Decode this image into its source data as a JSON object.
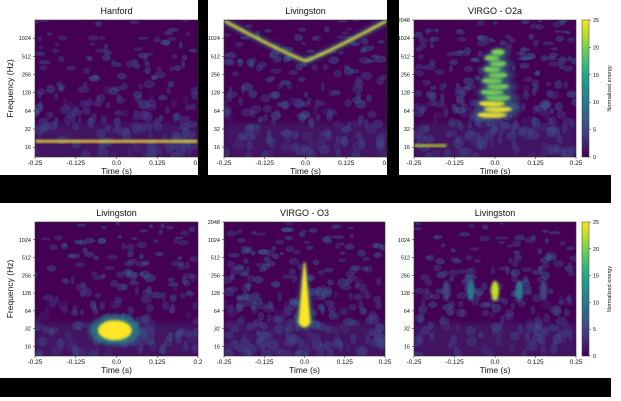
{
  "colorbar": {
    "label": "Normalized energy",
    "ticks": [
      "0",
      "5",
      "10",
      "15",
      "20",
      "25"
    ],
    "range": [
      0,
      25
    ]
  },
  "colormap": [
    "#440154",
    "#482475",
    "#414487",
    "#355f8d",
    "#2a788e",
    "#21918c",
    "#22a884",
    "#44bf70",
    "#7ad151",
    "#bddf26",
    "#fde725"
  ],
  "chart_data": [
    {
      "type": "heatmap",
      "title": "Hanford",
      "xlabel": "Time (s)",
      "ylabel": "Frequency (Hz)",
      "xlim": [
        -0.25,
        0.25
      ],
      "x_ticks": [
        "-0.25",
        "-0.125",
        "0.0",
        "0.125",
        "0.2"
      ],
      "y_scale": "log2",
      "ylim": [
        11,
        2048
      ],
      "y_ticks": [
        "16",
        "32",
        "64",
        "128",
        "256",
        "512",
        "1024"
      ],
      "features": [
        {
          "kind": "horizontal_line",
          "freq_hz": 20,
          "t_start": -0.25,
          "t_end": 0.25,
          "energy": 25
        }
      ]
    },
    {
      "type": "heatmap",
      "title": "Livingston",
      "xlabel": "Time (s)",
      "ylabel": "",
      "xlim": [
        -0.25,
        0.25
      ],
      "x_ticks": [
        "-0.25",
        "-0.125",
        "0.0",
        "0.125",
        "0.2"
      ],
      "y_scale": "log2",
      "ylim": [
        11,
        2048
      ],
      "y_ticks": [
        "16",
        "32",
        "64",
        "128",
        "256",
        "512",
        "1024"
      ],
      "features": [
        {
          "kind": "v_curve",
          "t_center": 0.0,
          "freq_min_hz": 430,
          "freq_edge_hz": 2000,
          "energy": 25
        }
      ]
    },
    {
      "type": "heatmap",
      "title": "VIRGO - O2a",
      "xlabel": "Time (s)",
      "ylabel": "",
      "xlim": [
        -0.25,
        0.25
      ],
      "x_ticks": [
        "-0.25",
        "-0.125",
        "0.0",
        "0.125",
        "0.25"
      ],
      "y_scale": "log2",
      "ylim": [
        11,
        2048
      ],
      "y_ticks": [
        "16",
        "32",
        "64",
        "128",
        "256",
        "512",
        "1024",
        "2048"
      ],
      "colorbar": true,
      "features": [
        {
          "kind": "vertical_blob",
          "t_center": 0.0,
          "freq_low_hz": 55,
          "freq_high_hz": 600,
          "energy": 25
        },
        {
          "kind": "horizontal_line",
          "freq_hz": 17,
          "t_start": -0.25,
          "t_end": -0.15,
          "energy": 22
        }
      ]
    },
    {
      "type": "heatmap",
      "title": "Livingston",
      "xlabel": "Time (s)",
      "ylabel": "Frequency (Hz)",
      "xlim": [
        -0.25,
        0.25
      ],
      "x_ticks": [
        "-0.25",
        "-0.125",
        "0.0",
        "0.125",
        "0.2"
      ],
      "y_scale": "log2",
      "ylim": [
        11,
        2048
      ],
      "y_ticks": [
        "16",
        "32",
        "64",
        "128",
        "256",
        "512",
        "1024"
      ],
      "features": [
        {
          "kind": "ellipse",
          "t_center": -0.005,
          "freq_hz": 30,
          "energy": 25
        }
      ]
    },
    {
      "type": "heatmap",
      "title": "VIRGO - O3",
      "xlabel": "Time (s)",
      "ylabel": "",
      "xlim": [
        -0.25,
        0.25
      ],
      "x_ticks": [
        "-0.25",
        "-0.125",
        "0.0",
        "0.125",
        "0.25"
      ],
      "y_scale": "log2",
      "ylim": [
        11,
        2048
      ],
      "y_ticks": [
        "16",
        "32",
        "64",
        "128",
        "256",
        "512",
        "1024",
        "2048"
      ],
      "features": [
        {
          "kind": "spike",
          "t_center": 0.0,
          "freq_low_hz": 40,
          "freq_high_hz": 420,
          "energy": 25
        }
      ]
    },
    {
      "type": "heatmap",
      "title": "Livingston",
      "xlabel": "Time (s)",
      "ylabel": "",
      "xlim": [
        -0.25,
        0.25
      ],
      "x_ticks": [
        "-0.25",
        "-0.125",
        "0.0",
        "0.125",
        "0.25"
      ],
      "y_scale": "log2",
      "ylim": [
        11,
        2048
      ],
      "y_ticks": [
        "16",
        "32",
        "64",
        "128",
        "256",
        "512",
        "1024"
      ],
      "colorbar": true,
      "features": [
        {
          "kind": "blob_row",
          "t_centers": [
            -0.15,
            -0.075,
            0.0,
            0.075,
            0.15
          ],
          "freq_hz": 140,
          "energy": [
            6,
            10,
            22,
            10,
            6
          ]
        }
      ]
    }
  ]
}
